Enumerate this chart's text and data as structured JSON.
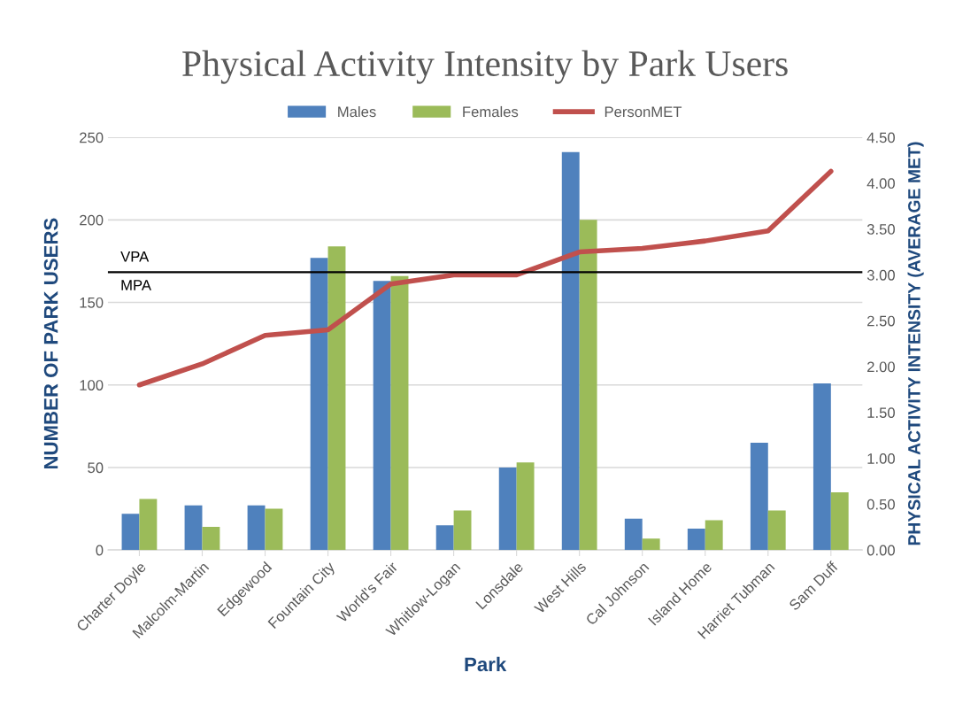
{
  "chart_data": {
    "type": "bar",
    "title": "Physical Activity Intensity by Park Users",
    "xlabel": "Park",
    "ylabel": "NUMBER OF PARK USERS",
    "y2label": "PHYSICAL ACTIVITY INTENSITY (AVERAGE MET)",
    "categories": [
      "Charter Doyle",
      "Malcolm-Martin",
      "Edgewood",
      "Fountain City",
      "World's Fair",
      "Whitlow-Logan",
      "Lonsdale",
      "West Hills",
      "Cal Johnson",
      "Island Home",
      "Harriet Tubman",
      "Sam Duff"
    ],
    "series": [
      {
        "name": "Males",
        "color": "#4f81bd",
        "values": [
          22,
          27,
          27,
          177,
          163,
          15,
          50,
          241,
          19,
          13,
          65,
          101
        ]
      },
      {
        "name": "Females",
        "color": "#9bbb59",
        "values": [
          31,
          14,
          25,
          184,
          166,
          24,
          53,
          200,
          7,
          18,
          24,
          35
        ]
      },
      {
        "name": "PersonMET",
        "color": "#c0504d",
        "type": "line",
        "axis": "y2",
        "values": [
          1.8,
          2.03,
          2.34,
          2.4,
          2.9,
          3.0,
          3.0,
          3.25,
          3.29,
          3.37,
          3.48,
          4.13
        ]
      }
    ],
    "ylim": [
      0,
      250
    ],
    "yticks": [
      0,
      50,
      100,
      150,
      200,
      250
    ],
    "y2lim": [
      0,
      4.5
    ],
    "y2ticks": [
      {
        "value": 0,
        "label": "0.00"
      },
      {
        "value": 0.5,
        "label": "0.50"
      },
      {
        "value": 1,
        "label": "1.00"
      },
      {
        "value": 1.5,
        "label": "1.50"
      },
      {
        "value": 2,
        "label": "2.00"
      },
      {
        "value": 2.5,
        "label": "2.50"
      },
      {
        "value": 3,
        "label": "3.00"
      },
      {
        "value": 3.5,
        "label": "3.50"
      },
      {
        "value": 4,
        "label": "4.00"
      },
      {
        "value": 4.5,
        "label": "4.50"
      }
    ],
    "ref_lines": [
      {
        "axis": "y2",
        "value": 3.03,
        "label": "VPA",
        "color": "#000000"
      }
    ],
    "annotations": [
      "MPA"
    ],
    "grid": "y",
    "legend": "top",
    "marker": "none",
    "line_style": "solid"
  }
}
